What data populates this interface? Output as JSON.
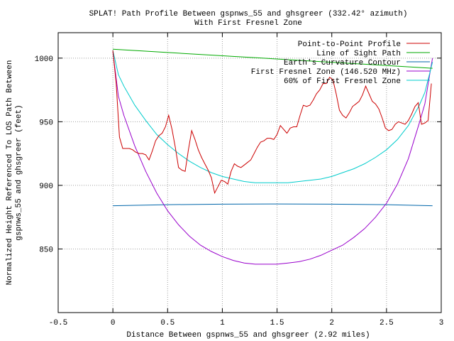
{
  "chart_data": {
    "type": "line",
    "title": "SPLAT! Path Profile Between gspnws_55 and ghsgreer (332.42° azimuth)",
    "subtitle": "With First Fresnel Zone",
    "xlabel": "Distance Between gspnws_55 and ghsgreer (2.92 miles)",
    "ylabel_lines": [
      "Normalized Height Referenced To LOS Path Between",
      "gspnws_55 and ghsgreer (feet)"
    ],
    "xlim": [
      -0.5,
      3
    ],
    "ylim": [
      800,
      1020
    ],
    "x_ticks": [
      -0.5,
      0,
      0.5,
      1,
      1.5,
      2,
      2.5,
      3
    ],
    "x_tick_labels": [
      "-0.5",
      "0",
      "0.5",
      "1",
      "1.5",
      "2",
      "2.5",
      "3"
    ],
    "y_ticks": [
      850,
      900,
      950,
      1000
    ],
    "y_tick_labels": [
      "850",
      "900",
      "950",
      "1000"
    ],
    "grid": true,
    "legend_position": "top-right",
    "series": [
      {
        "name": "Point-to-Point Profile",
        "color": "#cc0000",
        "x": [
          0.0,
          0.03,
          0.06,
          0.09,
          0.12,
          0.15,
          0.18,
          0.21,
          0.24,
          0.27,
          0.3,
          0.33,
          0.36,
          0.39,
          0.42,
          0.45,
          0.48,
          0.51,
          0.54,
          0.57,
          0.6,
          0.63,
          0.66,
          0.69,
          0.72,
          0.75,
          0.78,
          0.81,
          0.84,
          0.87,
          0.9,
          0.93,
          0.96,
          0.99,
          1.02,
          1.05,
          1.08,
          1.11,
          1.14,
          1.17,
          1.2,
          1.23,
          1.26,
          1.29,
          1.32,
          1.35,
          1.38,
          1.41,
          1.44,
          1.47,
          1.5,
          1.53,
          1.56,
          1.59,
          1.62,
          1.65,
          1.68,
          1.71,
          1.74,
          1.77,
          1.8,
          1.83,
          1.86,
          1.89,
          1.92,
          1.95,
          1.98,
          2.01,
          2.04,
          2.07,
          2.1,
          2.13,
          2.16,
          2.19,
          2.22,
          2.25,
          2.28,
          2.31,
          2.34,
          2.37,
          2.4,
          2.43,
          2.46,
          2.49,
          2.52,
          2.55,
          2.58,
          2.61,
          2.64,
          2.67,
          2.7,
          2.73,
          2.76,
          2.79,
          2.82,
          2.85,
          2.88,
          2.91
        ],
        "values": [
          1006,
          980,
          938,
          929,
          929,
          929,
          928,
          926,
          925,
          925,
          924,
          920,
          927,
          935,
          939,
          941,
          946,
          955,
          944,
          930,
          914,
          912,
          911,
          928,
          943,
          936,
          928,
          922,
          917,
          912,
          906,
          894,
          899,
          904,
          903,
          901,
          911,
          917,
          915,
          914,
          916,
          918,
          920,
          925,
          930,
          934,
          935,
          937,
          937,
          936,
          940,
          947,
          944,
          941,
          945,
          946,
          946,
          955,
          963,
          962,
          963,
          967,
          972,
          975,
          980,
          980,
          985,
          983,
          972,
          959,
          955,
          953,
          957,
          962,
          964,
          966,
          971,
          978,
          972,
          966,
          964,
          960,
          953,
          945,
          943,
          944,
          948,
          950,
          949,
          948,
          951,
          956,
          962,
          965,
          948,
          949,
          951,
          980
        ]
      },
      {
        "name": "Line of Sight Path",
        "color": "#00aa00",
        "x": [
          0.0,
          2.92
        ],
        "values": [
          1007,
          992
        ]
      },
      {
        "name": "Earth's Curvature Contour",
        "color": "#0066aa",
        "x": [
          0.0,
          0.5,
          1.0,
          1.5,
          2.0,
          2.5,
          2.92
        ],
        "values": [
          884,
          884.8,
          885.2,
          885.4,
          885.2,
          884.8,
          884
        ]
      },
      {
        "name": "First Fresnel Zone (146.520 MHz)",
        "color": "#9900cc",
        "x": [
          0.0,
          0.05,
          0.1,
          0.2,
          0.3,
          0.4,
          0.5,
          0.6,
          0.7,
          0.8,
          0.9,
          1.0,
          1.1,
          1.2,
          1.3,
          1.4,
          1.5,
          1.6,
          1.7,
          1.8,
          1.9,
          2.0,
          2.1,
          2.2,
          2.3,
          2.4,
          2.5,
          2.6,
          2.7,
          2.75,
          2.8,
          2.85,
          2.9,
          2.92
        ],
        "values": [
          1005,
          970,
          955,
          931,
          911,
          894,
          880,
          869,
          860,
          853,
          848,
          844,
          841,
          839,
          838,
          838,
          838,
          839,
          840,
          842,
          845,
          849,
          853,
          859,
          866,
          875,
          886,
          901,
          921,
          935,
          949,
          964,
          990,
          1000
        ]
      },
      {
        "name": "60% of First Fresnel Zone",
        "color": "#00cccc",
        "x": [
          0.0,
          0.05,
          0.1,
          0.2,
          0.3,
          0.4,
          0.5,
          0.6,
          0.7,
          0.8,
          0.9,
          1.0,
          1.1,
          1.2,
          1.3,
          1.4,
          1.5,
          1.6,
          1.7,
          1.8,
          1.9,
          2.0,
          2.1,
          2.2,
          2.3,
          2.4,
          2.5,
          2.6,
          2.7,
          2.75,
          2.8,
          2.85,
          2.9,
          2.92
        ],
        "values": [
          1006,
          987,
          978,
          963,
          951,
          940,
          932,
          925,
          919,
          914,
          910,
          907,
          905,
          903,
          902,
          902,
          902,
          902,
          903,
          904,
          905,
          907,
          910,
          913,
          917,
          922,
          928,
          936,
          947,
          955,
          963,
          973,
          990,
          997
        ]
      }
    ]
  }
}
